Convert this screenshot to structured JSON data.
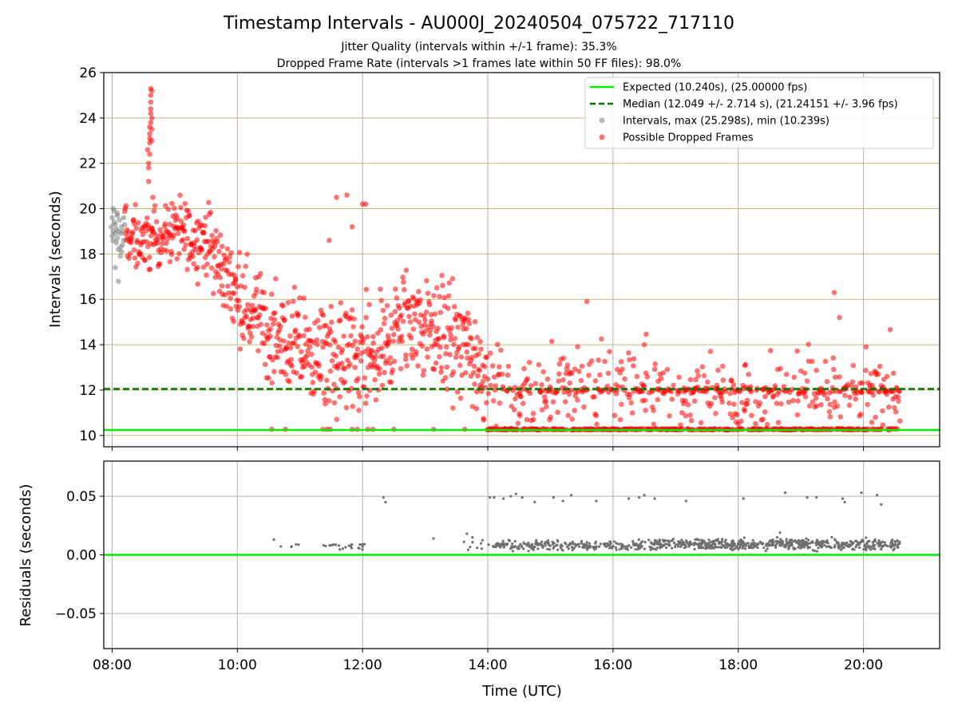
{
  "title": "Timestamp Intervals - AU000J_20240504_075722_717110",
  "subtitle_1": "Jitter Quality (intervals within +/-1 frame): 35.3%",
  "subtitle_2": "Dropped Frame Rate (intervals >1 frames late within 50 FF files): 98.0%",
  "colors": {
    "expected": "#00ee00",
    "median": "#007700",
    "intervals": "#808080",
    "dropped": "#ff0000",
    "hgrid_top": "#c8b878",
    "grid": "#b0b0b0",
    "residuals": "#707070"
  },
  "chart_data": [
    {
      "type": "scatter",
      "panel": "intervals",
      "xlabel": "Time (UTC)",
      "ylabel": "Intervals (seconds)",
      "xlim": [
        "07:52",
        "21:13"
      ],
      "ylim": [
        9.5,
        26
      ],
      "x_ticks": [
        "08:00",
        "10:00",
        "12:00",
        "14:00",
        "16:00",
        "18:00",
        "20:00"
      ],
      "y_ticks": [
        10,
        12,
        14,
        16,
        18,
        20,
        22,
        24,
        26
      ],
      "grid": true,
      "legend_position": "top-right",
      "legend": [
        "Expected (10.240s), (25.00000 fps)",
        "Median (12.049 +/- 2.714 s), (21.24151 +/- 3.96 fps)",
        "Intervals, max (25.298s), min (10.239s)",
        "Possible Dropped Frames"
      ],
      "reference_lines": {
        "expected": 10.24,
        "median": 12.049
      },
      "time_range": [
        "07:58",
        "20:35"
      ],
      "series": [
        {
          "name": "Intervals, max (25.298s), min (10.239s)",
          "x": [
            "07:59",
            "08:00",
            "08:00",
            "08:01",
            "08:01",
            "08:02",
            "08:02",
            "08:03",
            "08:03",
            "08:04",
            "08:04",
            "08:05",
            "08:05",
            "08:06",
            "08:06",
            "08:07",
            "08:08",
            "08:08",
            "08:09",
            "08:10",
            "08:10",
            "08:11",
            "08:12",
            "08:03",
            "08:06",
            "08:09",
            "08:01",
            "08:05",
            "08:08",
            "08:11"
          ],
          "y": [
            19.2,
            18.8,
            19.6,
            19.0,
            18.6,
            19.4,
            19.9,
            18.9,
            19.3,
            18.5,
            19.1,
            19.7,
            18.7,
            19.0,
            18.2,
            19.5,
            18.9,
            17.9,
            19.2,
            18.4,
            19.0,
            18.6,
            19.3,
            17.4,
            16.8,
            18.1,
            20.0,
            19.8,
            18.3,
            19.6
          ]
        },
        {
          "name": "Possible Dropped Frames",
          "keyframes": [
            {
              "t": "08:12",
              "center": 18.8,
              "spread": 2.0
            },
            {
              "t": "08:30",
              "center": 18.6,
              "spread": 2.0
            },
            {
              "t": "09:00",
              "center": 19.0,
              "spread": 2.0
            },
            {
              "t": "09:30",
              "center": 18.6,
              "spread": 2.2
            },
            {
              "t": "09:50",
              "center": 17.0,
              "spread": 2.6
            },
            {
              "t": "10:10",
              "center": 15.6,
              "spread": 3.0
            },
            {
              "t": "10:40",
              "center": 14.3,
              "spread": 3.2
            },
            {
              "t": "11:10",
              "center": 13.6,
              "spread": 3.4
            },
            {
              "t": "11:40",
              "center": 13.2,
              "spread": 3.8
            },
            {
              "t": "12:10",
              "center": 13.2,
              "spread": 3.8
            },
            {
              "t": "12:40",
              "center": 15.0,
              "spread": 3.4
            },
            {
              "t": "13:10",
              "center": 14.6,
              "spread": 3.6
            },
            {
              "t": "13:40",
              "center": 13.8,
              "spread": 3.8
            },
            {
              "t": "14:10",
              "center": 12.0,
              "spread": 3.0
            },
            {
              "t": "15:00",
              "center": 12.0,
              "spread": 3.0
            },
            {
              "t": "16:00",
              "center": 12.2,
              "spread": 3.2
            },
            {
              "t": "16:40",
              "center": 12.0,
              "spread": 3.0
            },
            {
              "t": "17:30",
              "center": 11.6,
              "spread": 2.6
            },
            {
              "t": "18:30",
              "center": 11.8,
              "spread": 2.8
            },
            {
              "t": "19:30",
              "center": 12.0,
              "spread": 3.0
            },
            {
              "t": "20:35",
              "center": 11.8,
              "spread": 3.0
            }
          ],
          "baseline": 10.24,
          "x": [
            "08:35",
            "08:35",
            "08:36",
            "08:36",
            "08:36",
            "08:37",
            "08:37",
            "08:37",
            "08:37",
            "08:38",
            "08:38",
            "08:38",
            "08:34",
            "08:35",
            "08:36",
            "08:36",
            "08:37",
            "08:37",
            "08:38",
            "08:39",
            "11:35",
            "11:45",
            "11:50",
            "12:00",
            "12:03",
            "11:28",
            "16:30",
            "19:32",
            "19:37",
            "15:35"
          ],
          "y": [
            21.2,
            21.8,
            22.4,
            22.9,
            23.3,
            23.8,
            24.2,
            24.7,
            25.3,
            25.2,
            24.0,
            23.5,
            22.6,
            22.0,
            23.1,
            23.6,
            24.4,
            25.0,
            23.0,
            20.5,
            20.5,
            20.6,
            19.2,
            20.2,
            20.2,
            18.6,
            14.0,
            16.3,
            15.2,
            15.9
          ]
        }
      ]
    },
    {
      "type": "scatter",
      "panel": "residuals",
      "ylabel": "Residuals (seconds)",
      "xlim": [
        "07:52",
        "21:13"
      ],
      "ylim": [
        -0.08,
        0.08
      ],
      "y_ticks": [
        -0.05,
        0.0,
        0.05
      ],
      "y_tick_labels": [
        "−0.05",
        "0.00",
        "0.05"
      ],
      "grid": true,
      "reference_lines": {
        "zero": 0
      },
      "segments": [
        {
          "from": "10:35",
          "to": "11:00",
          "center": 0.008,
          "spread": 0.004,
          "count": 5
        },
        {
          "from": "11:20",
          "to": "12:10",
          "center": 0.007,
          "spread": 0.004,
          "count": 22
        },
        {
          "from": "13:35",
          "to": "14:05",
          "center": 0.008,
          "spread": 0.008,
          "count": 10
        },
        {
          "from": "14:05",
          "to": "16:40",
          "center": 0.008,
          "spread": 0.006,
          "count": 230
        },
        {
          "from": "16:40",
          "to": "20:35",
          "center": 0.009,
          "spread": 0.007,
          "count": 560
        }
      ],
      "series": [
        {
          "name": "",
          "x": [
            "12:20",
            "12:22",
            "14:02",
            "14:06",
            "14:15",
            "14:22",
            "14:27",
            "14:33",
            "14:45",
            "15:03",
            "15:12",
            "15:20",
            "15:44",
            "16:15",
            "16:25",
            "16:30",
            "16:40",
            "17:10",
            "18:05",
            "18:45",
            "19:06",
            "19:15",
            "19:40",
            "19:42",
            "19:58",
            "20:13",
            "20:17",
            "13:08",
            "13:40",
            "18:40",
            "10:35",
            "12:00"
          ],
          "y": [
            0.049,
            0.045,
            0.049,
            0.049,
            0.048,
            0.05,
            0.052,
            0.049,
            0.045,
            0.049,
            0.046,
            0.051,
            0.046,
            0.048,
            0.049,
            0.051,
            0.048,
            0.046,
            0.048,
            0.053,
            0.049,
            0.049,
            0.048,
            0.045,
            0.053,
            0.051,
            0.043,
            0.014,
            0.018,
            0.019,
            0.013,
            0.009
          ]
        }
      ]
    }
  ]
}
